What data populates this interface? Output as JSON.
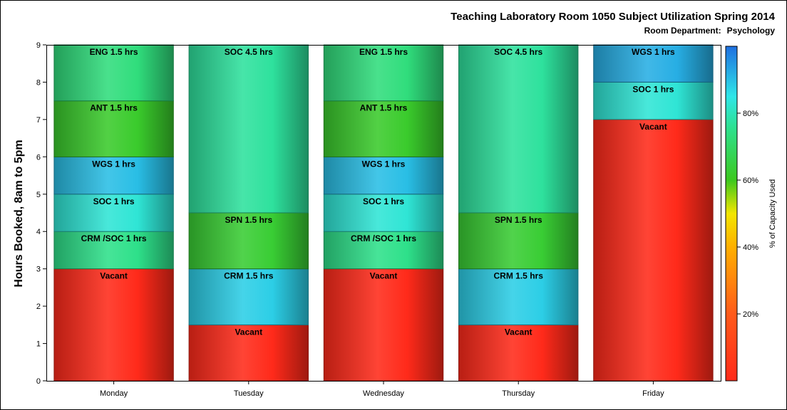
{
  "chart_data": {
    "type": "bar",
    "stacked": true,
    "title": "Teaching Laboratory Room 1050 Subject Utilization Spring 2014",
    "subtitle_label": "Room Department:",
    "subtitle_value": "Psychology",
    "ylabel": "Hours Booked, 8am to 5pm",
    "xlabel": "",
    "ylim": [
      0,
      9
    ],
    "yticks": [
      0,
      1,
      2,
      3,
      4,
      5,
      6,
      7,
      8,
      9
    ],
    "categories": [
      "Monday",
      "Tuesday",
      "Wednesday",
      "Thursday",
      "Friday"
    ],
    "stacks": [
      [
        {
          "label": "Vacant",
          "hours": 3,
          "capacity_pct": 0
        },
        {
          "label": "CRM /SOC 1 hrs",
          "hours": 1,
          "capacity_pct": 75
        },
        {
          "label": "SOC 1 hrs",
          "hours": 1,
          "capacity_pct": 83
        },
        {
          "label": "WGS 1 hrs",
          "hours": 1,
          "capacity_pct": 90
        },
        {
          "label": "ANT 1.5 hrs",
          "hours": 1.5,
          "capacity_pct": 62
        },
        {
          "label": "ENG 1.5 hrs",
          "hours": 1.5,
          "capacity_pct": 73
        }
      ],
      [
        {
          "label": "Vacant",
          "hours": 1.5,
          "capacity_pct": 0
        },
        {
          "label": "CRM 1.5 hrs",
          "hours": 1.5,
          "capacity_pct": 88
        },
        {
          "label": "SPN 1.5 hrs",
          "hours": 1.5,
          "capacity_pct": 63
        },
        {
          "label": "SOC 4.5 hrs",
          "hours": 4.5,
          "capacity_pct": 77
        }
      ],
      [
        {
          "label": "Vacant",
          "hours": 3,
          "capacity_pct": 0
        },
        {
          "label": "CRM /SOC 1 hrs",
          "hours": 1,
          "capacity_pct": 75
        },
        {
          "label": "SOC 1 hrs",
          "hours": 1,
          "capacity_pct": 83
        },
        {
          "label": "WGS 1 hrs",
          "hours": 1,
          "capacity_pct": 90
        },
        {
          "label": "ANT 1.5 hrs",
          "hours": 1.5,
          "capacity_pct": 62
        },
        {
          "label": "ENG 1.5 hrs",
          "hours": 1.5,
          "capacity_pct": 73
        }
      ],
      [
        {
          "label": "Vacant",
          "hours": 1.5,
          "capacity_pct": 0
        },
        {
          "label": "CRM 1.5 hrs",
          "hours": 1.5,
          "capacity_pct": 88
        },
        {
          "label": "SPN 1.5 hrs",
          "hours": 1.5,
          "capacity_pct": 63
        },
        {
          "label": "SOC 4.5 hrs",
          "hours": 4.5,
          "capacity_pct": 77
        }
      ],
      [
        {
          "label": "Vacant",
          "hours": 7,
          "capacity_pct": 0
        },
        {
          "label": "SOC 1 hrs",
          "hours": 1,
          "capacity_pct": 83
        },
        {
          "label": "WGS 1 hrs",
          "hours": 1,
          "capacity_pct": 92
        }
      ]
    ],
    "colorbar": {
      "label": "% of Capacity Used",
      "ticks": [
        20,
        40,
        60,
        80
      ],
      "tick_suffix": "%",
      "range": [
        0,
        100
      ],
      "stops": [
        {
          "value": 0,
          "color": "#ff2a1a"
        },
        {
          "value": 20,
          "color": "#ff5a1a"
        },
        {
          "value": 40,
          "color": "#ffb000"
        },
        {
          "value": 50,
          "color": "#f2e600"
        },
        {
          "value": 60,
          "color": "#3cc81e"
        },
        {
          "value": 75,
          "color": "#2ee08a"
        },
        {
          "value": 85,
          "color": "#2fe6e8"
        },
        {
          "value": 100,
          "color": "#1e6fe0"
        }
      ]
    },
    "legend_position": "right",
    "grid": false
  }
}
